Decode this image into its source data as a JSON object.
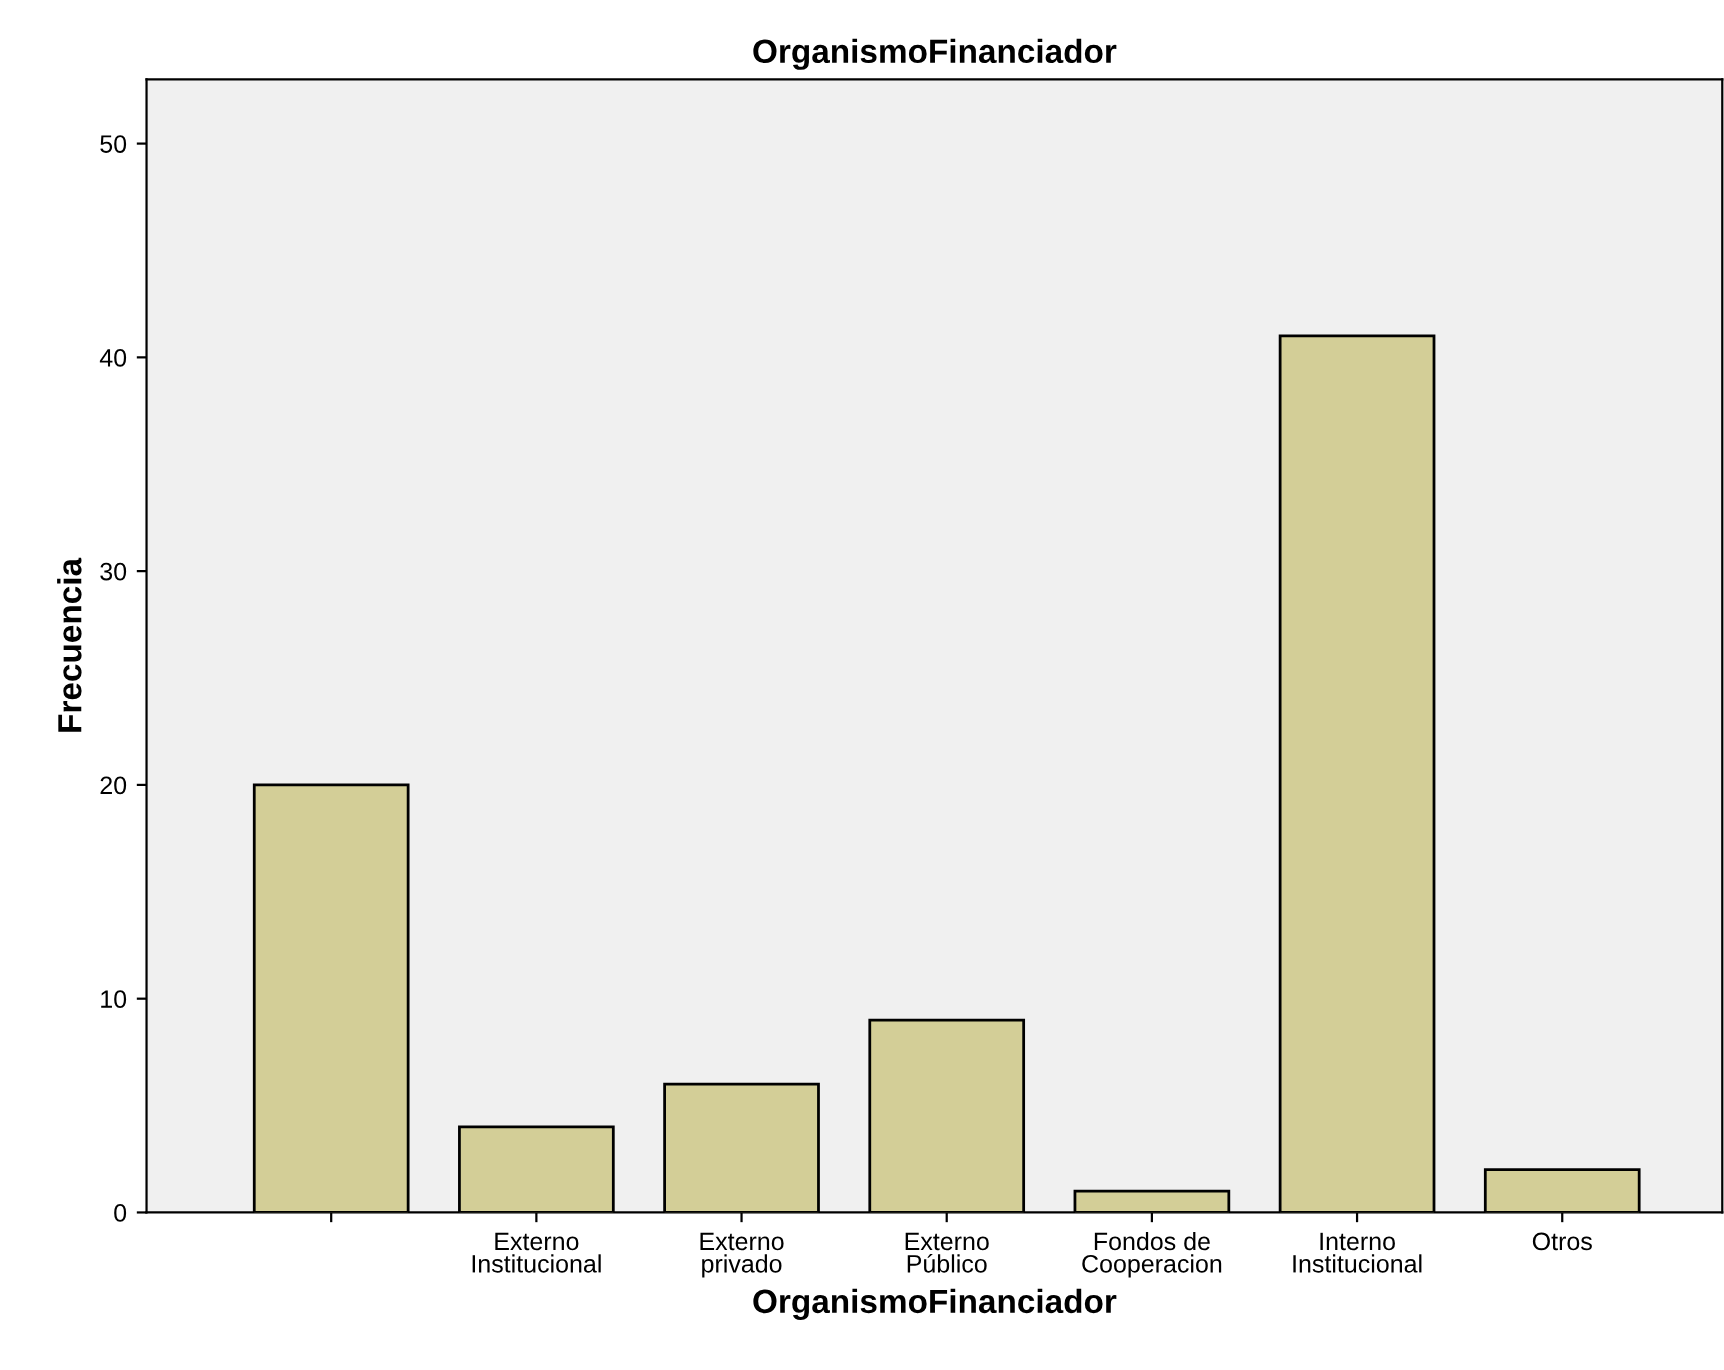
{
  "chart_data": {
    "type": "bar",
    "title": "OrganismoFinanciador",
    "xlabel": "OrganismoFinanciador",
    "ylabel": "Frecuencia",
    "categories": [
      null,
      "Externo\nInstitucional",
      "Externo\nprivado",
      "Externo\nPúblico",
      "Fondos de\nCooperacion",
      "Interno\nInstitucional",
      "Otros"
    ],
    "values": [
      20,
      4,
      6,
      9,
      1,
      41,
      2
    ],
    "color": "#d3ce97",
    "ylim": [
      0,
      53
    ],
    "yticks": [
      0,
      10,
      20,
      30,
      40,
      50
    ],
    "grid": false,
    "legend": false
  }
}
